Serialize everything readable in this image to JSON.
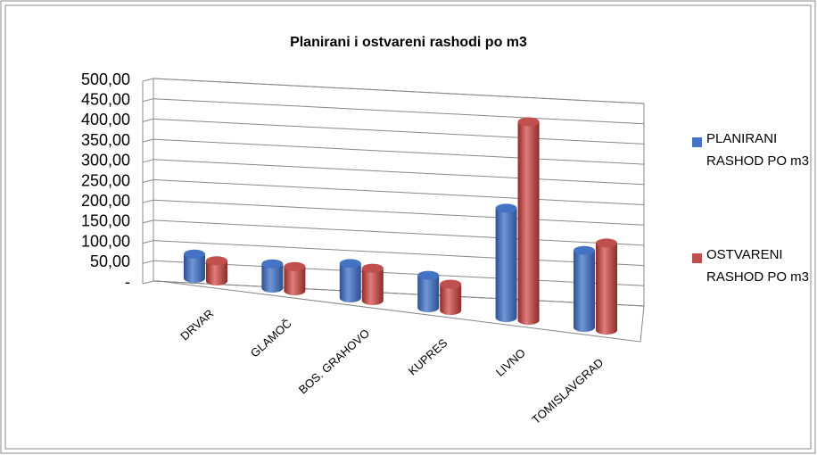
{
  "chart_data": {
    "type": "bar3d",
    "title": "Planirani i ostvareni rashodi po m3",
    "categories": [
      "DRVAR",
      "GLAMOČ",
      "BOS. GRAHOVO",
      "KUPRES",
      "LIVNO",
      "TOMISLAVGRAD"
    ],
    "series": [
      {
        "name": "PLANIRANI RASHOD PO m3",
        "color": "#4472c4",
        "values": [
          60,
          60,
          85,
          80,
          270,
          190
        ]
      },
      {
        "name": "OSTVARENI RASHOD PO m3",
        "color": "#c0504d",
        "values": [
          50,
          60,
          80,
          65,
          490,
          215
        ]
      }
    ],
    "ylim": [
      0,
      500
    ],
    "yticks": [
      {
        "value": 0,
        "label": "-"
      },
      {
        "value": 50,
        "label": "50,00"
      },
      {
        "value": 100,
        "label": "100,00"
      },
      {
        "value": 150,
        "label": "150,00"
      },
      {
        "value": 200,
        "label": "200,00"
      },
      {
        "value": 250,
        "label": "250,00"
      },
      {
        "value": 300,
        "label": "300,00"
      },
      {
        "value": 350,
        "label": "350,00"
      },
      {
        "value": 400,
        "label": "400,00"
      },
      {
        "value": 450,
        "label": "450,00"
      },
      {
        "value": 500,
        "label": "500,00"
      }
    ],
    "grid": true,
    "legend": "right"
  }
}
